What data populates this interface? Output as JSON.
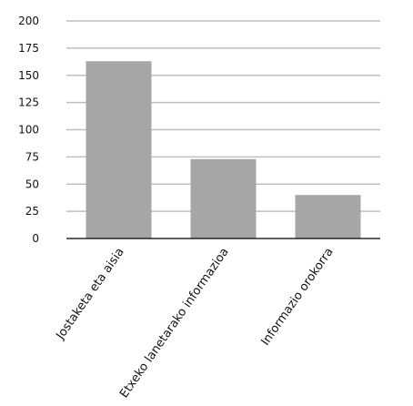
{
  "chart_data": {
    "type": "bar",
    "categories": [
      "Jostaketa eta aisia",
      "Etxeko lanetarako informazioa",
      "Informazio orokorra"
    ],
    "values": [
      163,
      73,
      40
    ],
    "title": "",
    "xlabel": "",
    "ylabel": "",
    "ylim": [
      0,
      200
    ],
    "yticks": [
      0,
      25,
      50,
      75,
      100,
      125,
      150,
      175,
      200
    ],
    "grid": true,
    "legend": "none",
    "colors": {
      "bar": "#a6a6a6",
      "grid": "#bfbfbf",
      "axis": "#000000"
    }
  }
}
